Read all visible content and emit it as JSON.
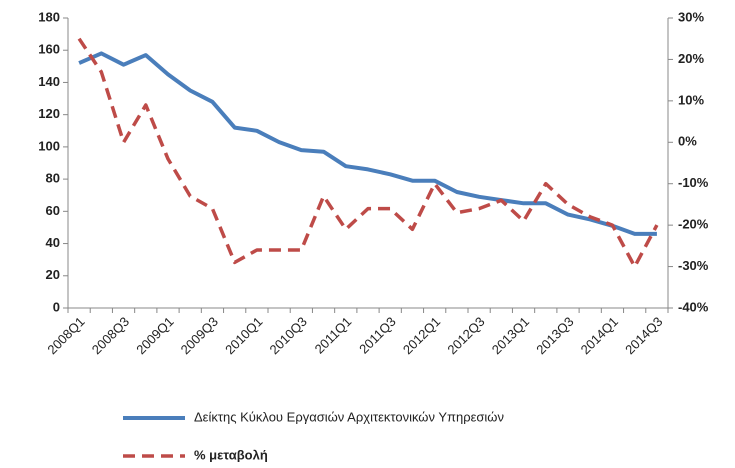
{
  "chart_data": {
    "type": "line",
    "categories": [
      "2008Q1",
      null,
      "2008Q3",
      null,
      "2009Q1",
      null,
      "2009Q3",
      null,
      "2010Q1",
      null,
      "2010Q3",
      null,
      "2011Q1",
      null,
      "2011Q3",
      null,
      "2012Q1",
      null,
      "2012Q3",
      null,
      "2013Q1",
      null,
      "2013Q3",
      null,
      "2014Q1",
      null,
      "2014Q3"
    ],
    "series": [
      {
        "name": "Δείκτης Κύκλου Εργασιών  Αρχιτεκτονικών Υπηρεσιών",
        "color": "#4a7ebb",
        "style": "solid",
        "values": [
          152,
          158,
          151,
          157,
          145,
          135,
          128,
          112,
          110,
          103,
          98,
          97,
          88,
          86,
          83,
          79,
          79,
          72,
          69,
          67,
          65,
          65,
          58,
          55,
          51,
          46,
          46
        ]
      },
      {
        "name": "% μεταβολή",
        "color": "#be4b48",
        "style": "dashed",
        "axis": "y2",
        "values": [
          25,
          17,
          0,
          9,
          -4,
          -13,
          -16,
          -29,
          -26,
          -26,
          -26,
          -13,
          -21,
          -16,
          -16,
          -21,
          -10,
          -17,
          -16,
          -14,
          -19,
          -10,
          -15,
          -18,
          -20,
          -30,
          -20
        ]
      }
    ],
    "ylim": [
      0,
      180
    ],
    "yticks": [
      0,
      20,
      40,
      60,
      80,
      100,
      120,
      140,
      160,
      180
    ],
    "y2lim": [
      -40,
      30
    ],
    "y2ticks": [
      {
        "value": -40,
        "label": "-40%"
      },
      {
        "value": -30,
        "label": "-30%"
      },
      {
        "value": -20,
        "label": "-20%"
      },
      {
        "value": -10,
        "label": "-10%"
      },
      {
        "value": 0,
        "label": "0%"
      },
      {
        "value": 10,
        "label": "10%"
      },
      {
        "value": 20,
        "label": "20%"
      },
      {
        "value": 30,
        "label": "30%"
      }
    ],
    "grid": false
  }
}
